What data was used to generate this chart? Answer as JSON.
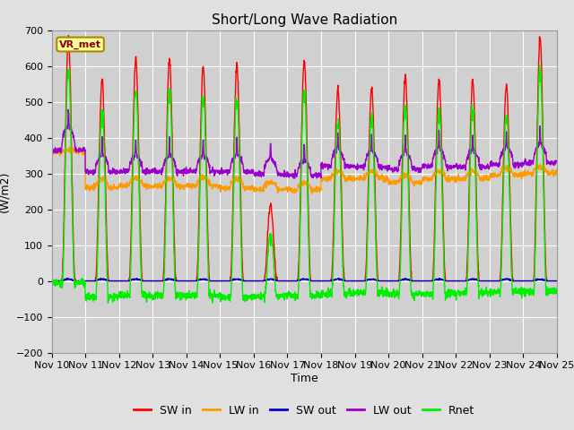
{
  "title": "Short/Long Wave Radiation",
  "ylabel": "(W/m2)",
  "xlabel": "Time",
  "ylim": [
    -200,
    700
  ],
  "yticks": [
    -200,
    -100,
    0,
    100,
    200,
    300,
    400,
    500,
    600,
    700
  ],
  "n_days": 15,
  "start_day": 10,
  "colors": {
    "SW_in": "#ff0000",
    "LW_in": "#ff9900",
    "SW_out": "#0000cc",
    "LW_out": "#9900cc",
    "Rnet": "#00ee00"
  },
  "station_label": "VR_met",
  "fig_bg_color": "#e0e0e0",
  "plot_bg_color": "#d0d0d0",
  "grid_color": "#ffffff",
  "title_fontsize": 11,
  "label_fontsize": 9,
  "tick_fontsize": 8,
  "sw_peaks": [
    680,
    560,
    620,
    615,
    600,
    600,
    210,
    615,
    535,
    540,
    570,
    565,
    560,
    545,
    680
  ],
  "lw_in_night": [
    360,
    260,
    265,
    265,
    265,
    260,
    255,
    255,
    285,
    285,
    275,
    285,
    285,
    295,
    300
  ],
  "lw_in_day": [
    365,
    285,
    285,
    285,
    290,
    285,
    275,
    275,
    305,
    305,
    295,
    305,
    305,
    315,
    320
  ],
  "lw_out_night": [
    365,
    305,
    305,
    305,
    305,
    305,
    298,
    295,
    320,
    318,
    312,
    320,
    318,
    325,
    330
  ],
  "lw_out_day": [
    430,
    350,
    350,
    348,
    348,
    350,
    340,
    335,
    368,
    362,
    358,
    368,
    362,
    372,
    382
  ]
}
